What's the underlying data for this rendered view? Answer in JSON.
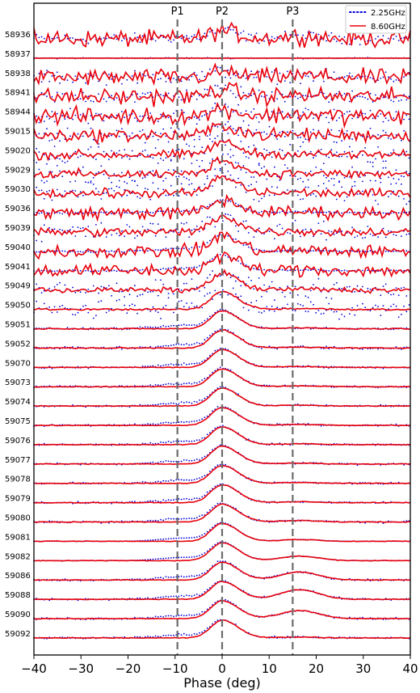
{
  "chart_data": {
    "type": "line",
    "title": "",
    "xlabel": "Phase (deg)",
    "ylabel": "",
    "xlim": [
      -40,
      40
    ],
    "xticks": [
      -40,
      -30,
      -20,
      -10,
      0,
      10,
      20,
      30,
      40
    ],
    "tick_labels": [
      "−40",
      "−30",
      "−20",
      "−10",
      "0",
      "10",
      "20",
      "30",
      "40"
    ],
    "legend": {
      "position": "top-right",
      "entries": [
        {
          "label": "2.25GHz",
          "color": "#0000dd",
          "style": "dotted"
        },
        {
          "label": "8.60GHz",
          "color": "#e8000b",
          "style": "solid"
        }
      ]
    },
    "peaks": [
      {
        "label": "P1",
        "phase": -9.5
      },
      {
        "label": "P2",
        "phase": 0
      },
      {
        "label": "P3",
        "phase": 15
      }
    ],
    "epochs": [
      {
        "mjd": "58936",
        "noise_s": 0.28,
        "noise_x": 0.45,
        "peak": 0.45,
        "p3": 0.15
      },
      {
        "mjd": "58937",
        "noise_s": 0.03,
        "noise_x": 0.0,
        "peak": 0.0,
        "p3": 0.0
      },
      {
        "mjd": "58938",
        "noise_s": 0.35,
        "noise_x": 0.45,
        "peak": 0.3,
        "p3": 0.1
      },
      {
        "mjd": "58941",
        "noise_s": 0.35,
        "noise_x": 0.45,
        "peak": 0.4,
        "p3": 0.1
      },
      {
        "mjd": "58944",
        "noise_s": 0.35,
        "noise_x": 0.45,
        "peak": 0.4,
        "p3": 0.1
      },
      {
        "mjd": "59015",
        "noise_s": 0.45,
        "noise_x": 0.35,
        "peak": 0.55,
        "p3": 0.05
      },
      {
        "mjd": "59020",
        "noise_s": 0.55,
        "noise_x": 0.25,
        "peak": 0.7,
        "p3": 0.05
      },
      {
        "mjd": "59029",
        "noise_s": 0.55,
        "noise_x": 0.25,
        "peak": 0.8,
        "p3": 0.05
      },
      {
        "mjd": "59030",
        "noise_s": 0.55,
        "noise_x": 0.25,
        "peak": 0.9,
        "p3": 0.05
      },
      {
        "mjd": "59036",
        "noise_s": 0.05,
        "noise_x": 0.35,
        "peak": 0.7,
        "p3": 0.05
      },
      {
        "mjd": "59039",
        "noise_s": 0.5,
        "noise_x": 0.25,
        "peak": 0.9,
        "p3": 0.05
      },
      {
        "mjd": "59040",
        "noise_s": 0.05,
        "noise_x": 0.35,
        "peak": 0.9,
        "p3": 0.05
      },
      {
        "mjd": "59041",
        "noise_s": 0.05,
        "noise_x": 0.35,
        "peak": 0.85,
        "p3": 0.05
      },
      {
        "mjd": "59049",
        "noise_s": 0.45,
        "noise_x": 0.15,
        "peak": 0.95,
        "p3": 0.05
      },
      {
        "mjd": "59050",
        "noise_s": 0.45,
        "noise_x": 0.05,
        "peak": 1.0,
        "p3": 0.05
      },
      {
        "mjd": "59051",
        "noise_s": 0.05,
        "noise_x": 0.03,
        "peak": 1.0,
        "p3": 0.05
      },
      {
        "mjd": "59052",
        "noise_s": 0.08,
        "noise_x": 0.03,
        "peak": 1.0,
        "p3": 0.05
      },
      {
        "mjd": "59070",
        "noise_s": 0.05,
        "noise_x": 0.02,
        "peak": 1.0,
        "p3": 0.05
      },
      {
        "mjd": "59073",
        "noise_s": 0.05,
        "noise_x": 0.02,
        "peak": 1.0,
        "p3": 0.05
      },
      {
        "mjd": "59074",
        "noise_s": 0.05,
        "noise_x": 0.02,
        "peak": 1.0,
        "p3": 0.05
      },
      {
        "mjd": "59075",
        "noise_s": 0.05,
        "noise_x": 0.02,
        "peak": 1.0,
        "p3": 0.05
      },
      {
        "mjd": "59076",
        "noise_s": 0.05,
        "noise_x": 0.02,
        "peak": 1.0,
        "p3": 0.05
      },
      {
        "mjd": "59077",
        "noise_s": 0.05,
        "noise_x": 0.02,
        "peak": 1.0,
        "p3": 0.05
      },
      {
        "mjd": "59078",
        "noise_s": 0.05,
        "noise_x": 0.02,
        "peak": 1.0,
        "p3": 0.05
      },
      {
        "mjd": "59079",
        "noise_s": 0.05,
        "noise_x": 0.02,
        "peak": 1.0,
        "p3": 0.05
      },
      {
        "mjd": "59080",
        "noise_s": 0.05,
        "noise_x": 0.02,
        "peak": 1.0,
        "p3": 0.08
      },
      {
        "mjd": "59081",
        "noise_s": 0.0,
        "noise_x": 0.02,
        "peak": 1.0,
        "p3": 0.1
      },
      {
        "mjd": "59082",
        "noise_s": 0.0,
        "noise_x": 0.02,
        "peak": 1.0,
        "p3": 0.25
      },
      {
        "mjd": "59086",
        "noise_s": 0.05,
        "noise_x": 0.02,
        "peak": 1.0,
        "p3": 0.45
      },
      {
        "mjd": "59088",
        "noise_s": 0.05,
        "noise_x": 0.02,
        "peak": 1.0,
        "p3": 0.55
      },
      {
        "mjd": "59090",
        "noise_s": 0.05,
        "noise_x": 0.02,
        "peak": 1.0,
        "p3": 0.45
      },
      {
        "mjd": "59092",
        "noise_s": 0.05,
        "noise_x": 0.02,
        "peak": 1.0,
        "p3": 0.05
      }
    ]
  }
}
